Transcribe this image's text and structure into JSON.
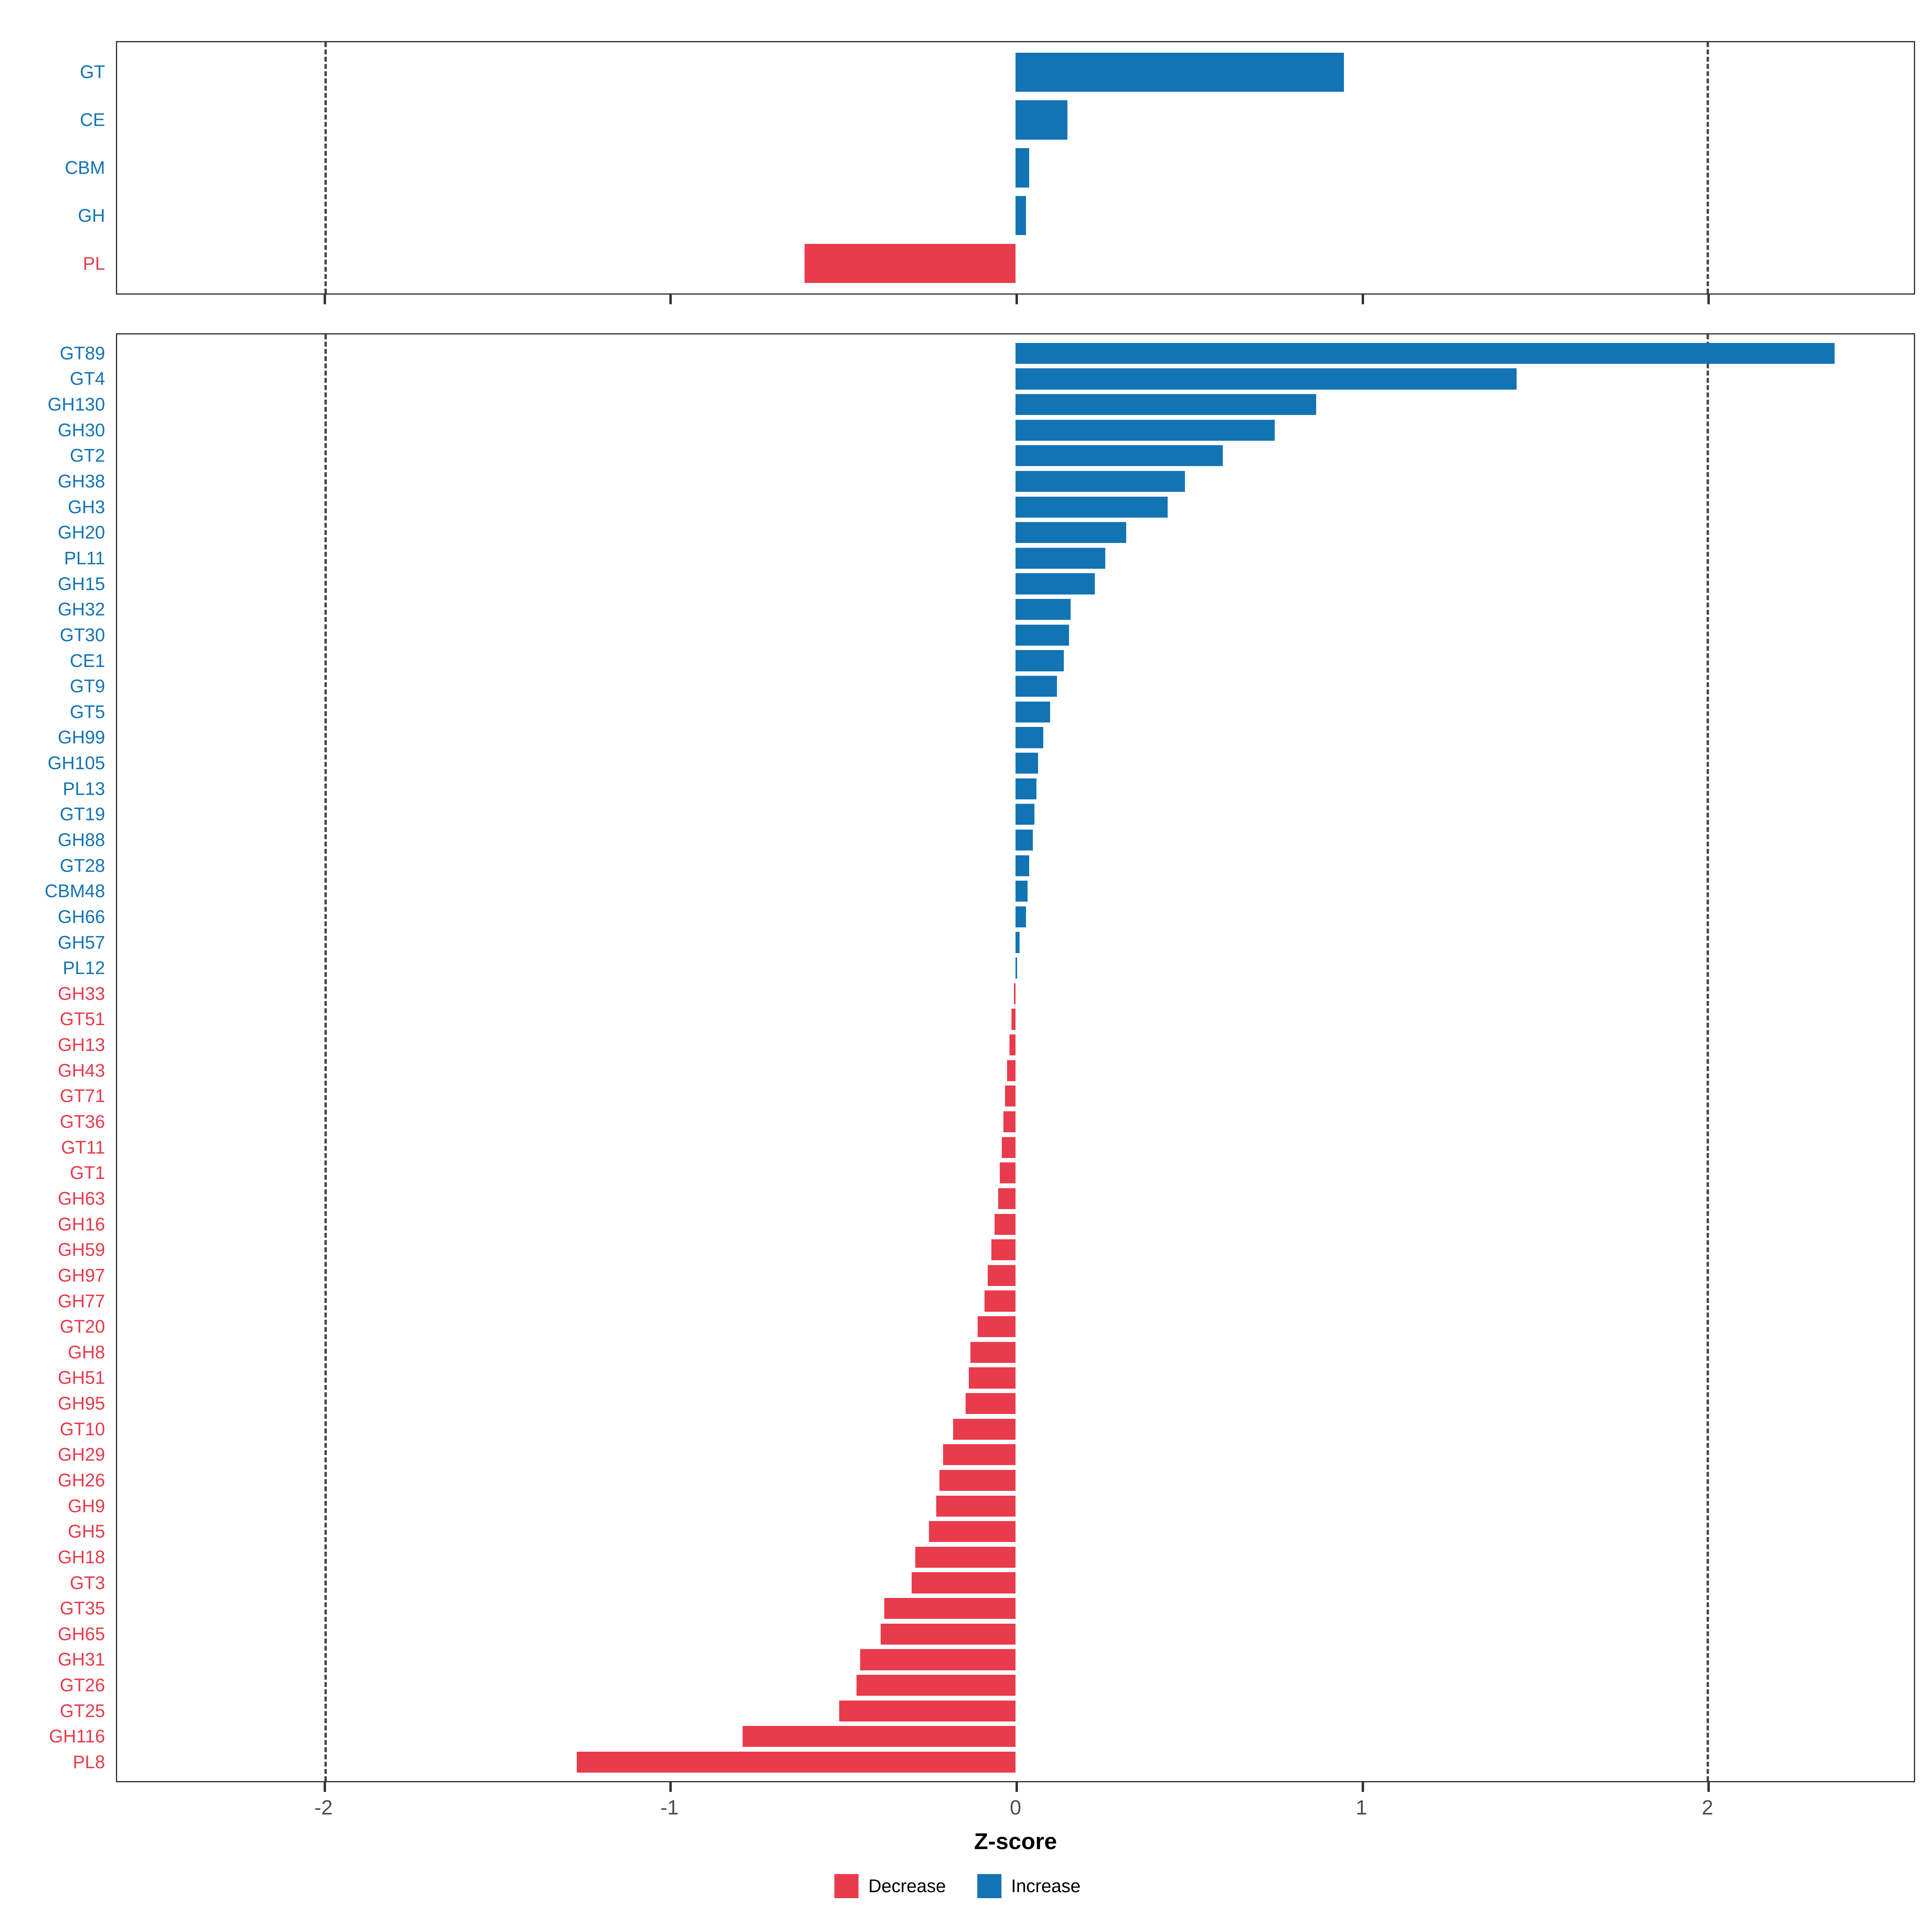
{
  "axis": {
    "label": "Z-score",
    "ticks": [
      -2,
      -1,
      0,
      1,
      2
    ],
    "xlim": [
      -2.6,
      2.6
    ],
    "dashed_lines": [
      -2,
      2
    ]
  },
  "colors": {
    "increase": "#1374b4",
    "decrease": "#e83b4c",
    "tick_text": "#4d4d4d",
    "panel_border": "#333333"
  },
  "legend": {
    "items": [
      {
        "label": "Decrease",
        "key": "decrease"
      },
      {
        "label": "Increase",
        "key": "increase"
      }
    ]
  },
  "chart_data": [
    {
      "type": "bar",
      "orientation": "horizontal",
      "panel_id": "class",
      "title": "",
      "xlabel": "Z-score",
      "xlim": [
        -2.6,
        2.6
      ],
      "categories": [
        "GT",
        "CE",
        "CBM",
        "GH",
        "PL"
      ],
      "values": [
        0.95,
        0.15,
        0.04,
        0.03,
        -0.61
      ]
    },
    {
      "type": "bar",
      "orientation": "horizontal",
      "panel_id": "family",
      "title": "",
      "xlabel": "Z-score",
      "xlim": [
        -2.6,
        2.6
      ],
      "categories": [
        "GT89",
        "GT4",
        "GH130",
        "GH30",
        "GT2",
        "GH38",
        "GH3",
        "GH20",
        "PL11",
        "GH15",
        "GH32",
        "GT30",
        "CE1",
        "GT9",
        "GT5",
        "GH99",
        "GH105",
        "PL13",
        "GT19",
        "GH88",
        "GT28",
        "CBM48",
        "GH66",
        "GH57",
        "PL12",
        "GH33",
        "GT51",
        "GH13",
        "GH43",
        "GT71",
        "GT36",
        "GT11",
        "GT1",
        "GH63",
        "GH16",
        "GH59",
        "GH97",
        "GH77",
        "GT20",
        "GH8",
        "GH51",
        "GH95",
        "GT10",
        "GH29",
        "GH26",
        "GH9",
        "GH5",
        "GH18",
        "GT3",
        "GT35",
        "GH65",
        "GH31",
        "GT26",
        "GT25",
        "GH116",
        "PL8"
      ],
      "values": [
        2.37,
        1.45,
        0.87,
        0.75,
        0.6,
        0.49,
        0.44,
        0.32,
        0.26,
        0.23,
        0.16,
        0.155,
        0.14,
        0.12,
        0.1,
        0.08,
        0.065,
        0.06,
        0.055,
        0.05,
        0.04,
        0.035,
        0.03,
        0.012,
        0.005,
        -0.005,
        -0.012,
        -0.018,
        -0.025,
        -0.03,
        -0.035,
        -0.04,
        -0.045,
        -0.05,
        -0.06,
        -0.07,
        -0.08,
        -0.09,
        -0.11,
        -0.13,
        -0.135,
        -0.145,
        -0.18,
        -0.21,
        -0.22,
        -0.23,
        -0.25,
        -0.29,
        -0.3,
        -0.38,
        -0.39,
        -0.45,
        -0.46,
        -0.51,
        -0.79,
        -1.27
      ]
    }
  ]
}
